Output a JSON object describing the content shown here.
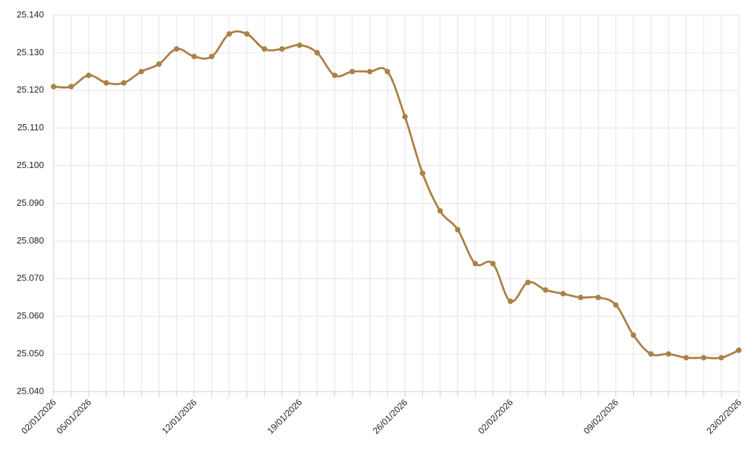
{
  "chart_data": {
    "type": "line",
    "categories": [
      "02/01/2026",
      null,
      "05/01/2026",
      null,
      null,
      null,
      null,
      null,
      "12/01/2026",
      null,
      null,
      null,
      null,
      null,
      "19/01/2026",
      null,
      null,
      null,
      null,
      null,
      "26/01/2026",
      null,
      null,
      null,
      null,
      null,
      "02/02/2026",
      null,
      null,
      null,
      null,
      null,
      "09/02/2026",
      null,
      null,
      null,
      null,
      null,
      null,
      "23/02/2026"
    ],
    "series": [
      {
        "color": "#ab8146",
        "values": [
          25.121,
          25.121,
          25.124,
          25.122,
          25.122,
          25.125,
          25.127,
          25.131,
          25.129,
          25.129,
          25.135,
          25.135,
          25.131,
          25.131,
          25.132,
          25.13,
          25.124,
          25.125,
          25.125,
          25.125,
          25.113,
          25.098,
          25.088,
          25.083,
          25.074,
          25.074,
          25.064,
          25.069,
          25.067,
          25.066,
          25.065,
          25.065,
          25.063,
          25.055,
          25.05,
          25.05,
          25.049,
          25.049,
          25.049,
          25.051
        ]
      }
    ],
    "ylim": [
      25.04,
      25.14
    ],
    "yticks": [
      {
        "value": 25.04,
        "label": "25.040"
      },
      {
        "value": 25.05,
        "label": "25.050"
      },
      {
        "value": 25.06,
        "label": "25.060"
      },
      {
        "value": 25.07,
        "label": "25.070"
      },
      {
        "value": 25.08,
        "label": "25.080"
      },
      {
        "value": 25.09,
        "label": "25.090"
      },
      {
        "value": 25.1,
        "label": "25.100"
      },
      {
        "value": 25.11,
        "label": "25.110"
      },
      {
        "value": 25.12,
        "label": "25.120"
      },
      {
        "value": 25.13,
        "label": "25.130"
      },
      {
        "value": 25.14,
        "label": "25.140"
      }
    ],
    "grid": true
  }
}
